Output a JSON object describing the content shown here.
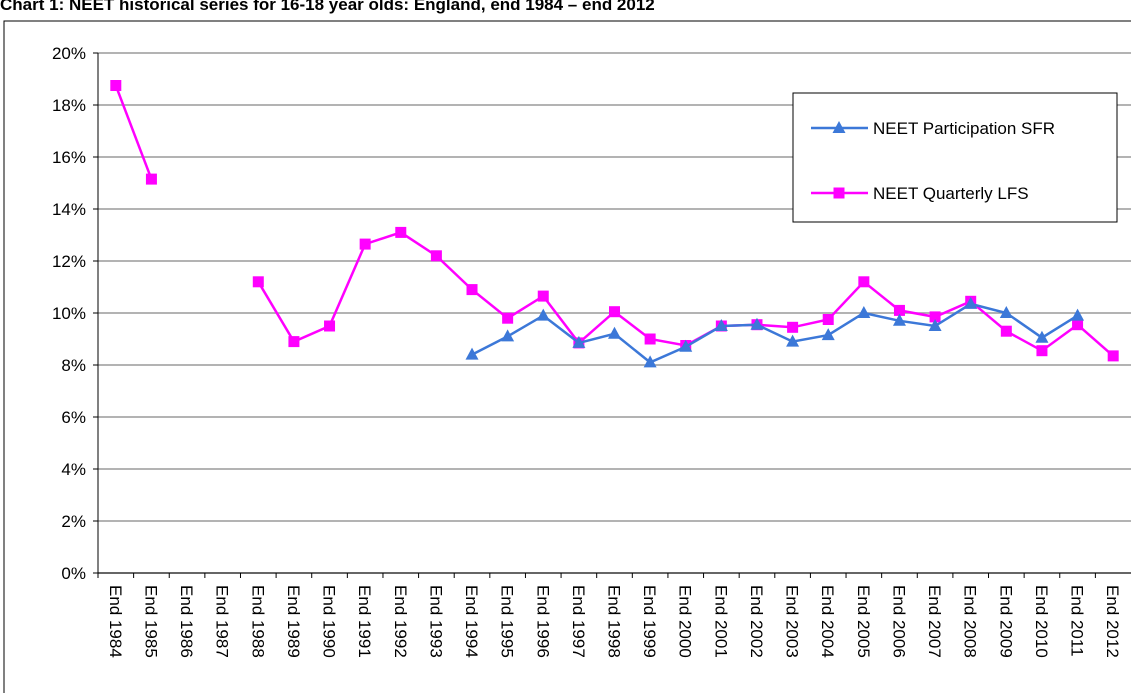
{
  "chart_data": {
    "type": "line",
    "title": "Chart 1: NEET historical series for 16-18 year olds: England, end 1984 – end 2012",
    "categories": [
      "End 1984",
      "End 1985",
      "End 1986",
      "End 1987",
      "End 1988",
      "End 1989",
      "End 1990",
      "End 1991",
      "End 1992",
      "End 1993",
      "End 1994",
      "End 1995",
      "End 1996",
      "End 1997",
      "End 1998",
      "End 1999",
      "End 2000",
      "End 2001",
      "End 2002",
      "End 2003",
      "End 2004",
      "End 2005",
      "End 2006",
      "End 2007",
      "End 2008",
      "End 2009",
      "End 2010",
      "End 2011",
      "End 2012"
    ],
    "series": [
      {
        "name": "NEET Participation SFR",
        "color": "#3c78d8",
        "marker": "triangle",
        "values": [
          null,
          null,
          null,
          null,
          null,
          null,
          null,
          null,
          null,
          null,
          8.4,
          9.1,
          9.9,
          8.85,
          9.2,
          8.1,
          8.7,
          9.5,
          9.55,
          8.9,
          9.15,
          10.0,
          9.7,
          9.5,
          10.35,
          10.0,
          9.05,
          9.9,
          null
        ]
      },
      {
        "name": "NEET Quarterly LFS",
        "color": "#ff00ff",
        "marker": "square",
        "values": [
          18.75,
          15.15,
          null,
          null,
          11.2,
          8.9,
          9.5,
          12.65,
          13.1,
          12.2,
          10.9,
          9.8,
          10.65,
          8.85,
          10.05,
          9.0,
          8.75,
          9.5,
          9.55,
          9.45,
          9.75,
          11.2,
          10.1,
          9.85,
          10.45,
          9.3,
          8.55,
          9.55,
          8.35
        ]
      }
    ],
    "ylim": [
      0,
      20
    ],
    "yticks": [
      {
        "value": 0,
        "label": "0%"
      },
      {
        "value": 2,
        "label": "2%"
      },
      {
        "value": 4,
        "label": "4%"
      },
      {
        "value": 6,
        "label": "6%"
      },
      {
        "value": 8,
        "label": "8%"
      },
      {
        "value": 10,
        "label": "10%"
      },
      {
        "value": 12,
        "label": "12%"
      },
      {
        "value": 14,
        "label": "14%"
      },
      {
        "value": 16,
        "label": "16%"
      },
      {
        "value": 18,
        "label": "18%"
      },
      {
        "value": 20,
        "label": "20%"
      }
    ],
    "grid": true,
    "legend": "upper right"
  }
}
